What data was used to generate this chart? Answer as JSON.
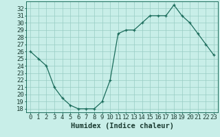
{
  "x": [
    0,
    1,
    2,
    3,
    4,
    5,
    6,
    7,
    8,
    9,
    10,
    11,
    12,
    13,
    14,
    15,
    16,
    17,
    18,
    19,
    20,
    21,
    22,
    23
  ],
  "y": [
    26,
    25,
    24,
    21,
    19.5,
    18.5,
    18,
    18,
    18,
    19,
    22,
    28.5,
    29,
    29,
    30,
    31,
    31,
    31,
    32.5,
    31,
    30,
    28.5,
    27,
    25.5
  ],
  "line_color": "#1a6b5a",
  "marker_color": "#1a6b5a",
  "bg_color": "#c8eee8",
  "grid_color": "#98ccc4",
  "xlabel": "Humidex (Indice chaleur)",
  "ylim_min": 17.5,
  "ylim_max": 33.0,
  "yticks": [
    18,
    19,
    20,
    21,
    22,
    23,
    24,
    25,
    26,
    27,
    28,
    29,
    30,
    31,
    32
  ],
  "xticks": [
    0,
    1,
    2,
    3,
    4,
    5,
    6,
    7,
    8,
    9,
    10,
    11,
    12,
    13,
    14,
    15,
    16,
    17,
    18,
    19,
    20,
    21,
    22,
    23
  ],
  "tick_fontsize": 6.5,
  "label_fontsize": 7.5
}
